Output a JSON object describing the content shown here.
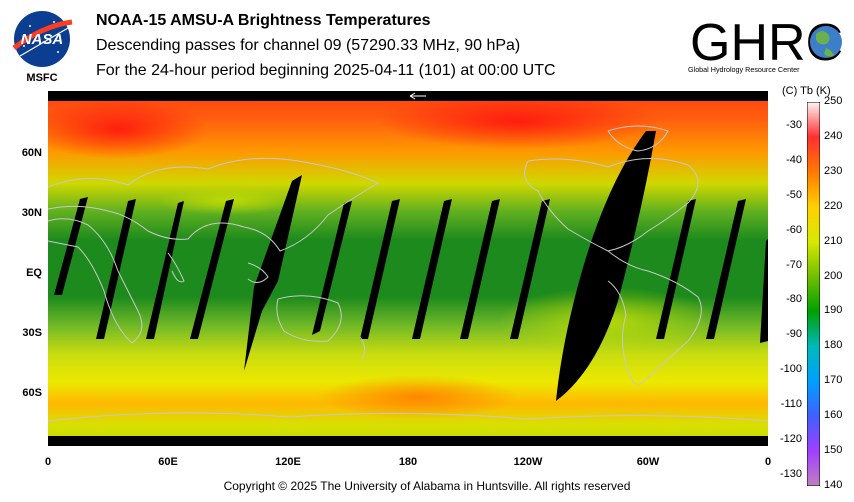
{
  "header": {
    "title": "NOAA-15 AMSU-A Brightness Temperatures",
    "subtitle": "Descending passes for channel 09 (57290.33 MHz, 90 hPa)",
    "period": "For the 24-hour period beginning 2025-04-11 (101) at 00:00 UTC"
  },
  "logos": {
    "nasa_text": "NASA",
    "msfc_text": "MSFC",
    "ghrc_text": "GHRC",
    "ghrc_subtext": "Global Hydrology Resource Center"
  },
  "axes": {
    "lat_labels": [
      "60N",
      "30N",
      "EQ",
      "30S",
      "60S"
    ],
    "lon_labels": [
      "0",
      "60E",
      "120E",
      "180",
      "120W",
      "60W",
      "0"
    ]
  },
  "colorbar": {
    "header": "(C)  Tb  (K)",
    "celsius": [
      "-30",
      "-40",
      "-50",
      "-60",
      "-70",
      "-80",
      "-90",
      "-100",
      "-110",
      "-120",
      "-130"
    ],
    "kelvin": [
      "250",
      "240",
      "230",
      "220",
      "210",
      "200",
      "190",
      "180",
      "170",
      "160",
      "150",
      "140"
    ],
    "colors": [
      "#fff5f5",
      "#ff3030",
      "#ff7a00",
      "#ffd000",
      "#d8e800",
      "#70c000",
      "#00a000",
      "#00b8b8",
      "#00a0ff",
      "#4060ff",
      "#a040ff",
      "#c080c0"
    ]
  },
  "footer": {
    "copyright": "Copyright © 2025 The University of Alabama in Huntsville.  All rights reserved"
  }
}
